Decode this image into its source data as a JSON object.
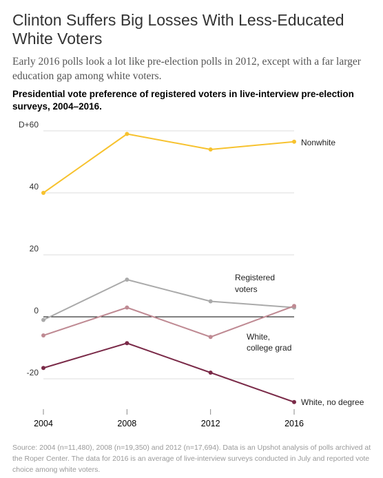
{
  "header": {
    "headline": "Clinton Suffers Big Losses With Less-Educated White Voters",
    "dek": "Early 2016 polls look a lot like pre-election polls in 2012, except with a far larger education gap among white voters."
  },
  "chart_data": {
    "type": "line",
    "title": "Presidential vote preference of registered voters in live-interview pre-election surveys, 2004–2016.",
    "x": [
      "2004",
      "2008",
      "2012",
      "2016"
    ],
    "ylim": [
      -30,
      62
    ],
    "yticks": [
      {
        "value": 60,
        "label": "D+60"
      },
      {
        "value": 40,
        "label": "40"
      },
      {
        "value": 20,
        "label": "20"
      },
      {
        "value": 0,
        "label": "0"
      },
      {
        "value": -20,
        "label": "-20"
      }
    ],
    "grid": true,
    "series": [
      {
        "name": "Nonwhite",
        "label_lines": [
          "Nonwhite"
        ],
        "color": "#f7c22e",
        "values": [
          40,
          59,
          54,
          56.5
        ]
      },
      {
        "name": "Registered voters",
        "label_lines": [
          "Registered",
          "voters"
        ],
        "color": "#aaaaaa",
        "values": [
          -1,
          12,
          5,
          3
        ]
      },
      {
        "name": "White, college grad",
        "label_lines": [
          "White,",
          "college grad"
        ],
        "color": "#bf8a93",
        "values": [
          -6,
          3,
          -6.5,
          3.5
        ]
      },
      {
        "name": "White, no degree",
        "label_lines": [
          "White, no degree"
        ],
        "color": "#7a2a48",
        "values": [
          -16.5,
          -8.5,
          -18,
          -27.5
        ]
      }
    ]
  },
  "footer": {
    "source": "Source: 2004 (n=11,480), 2008 (n=19,350) and 2012 (n=17,694). Data is an Upshot analysis of polls archived at the Roper Center. The data for 2016 is an average of live-interview surveys conducted in July and reported vote choice among white voters."
  }
}
